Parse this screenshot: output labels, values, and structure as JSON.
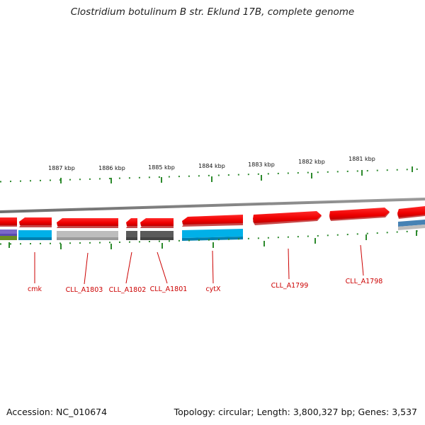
{
  "title": "Clostridium botulinum B str. Eklund 17B, complete genome",
  "footer": {
    "accession": "Accession: NC_010674",
    "summary": "Topology: circular; Length: 3,800,327 bp; Genes: 3,537"
  },
  "colors": {
    "gene_red": "#ff0000",
    "gene_shadow": "#c84a4a",
    "backbone": "#8a8a8a",
    "tick_green": "#2d8a2d",
    "label_red": "#cc0000",
    "cog_cyan": "#00b0e8",
    "cog_gray": "#bdbdbd",
    "cog_dark": "#5a5a5a",
    "cog_purple": "#7b68c8",
    "cog_olive": "#6b8e23",
    "cog_steel": "#4682b4"
  },
  "scale_labels": [
    "1887 kbp",
    "1886 kbp",
    "1885 kbp",
    "1884 kbp",
    "1883 kbp",
    "1882 kbp",
    "1881 kbp"
  ],
  "gene_labels": [
    "cmk",
    "CLL_A1803",
    "CLL_A1802",
    "CLL_A1801",
    "cytX",
    "CLL_A1799",
    "CLL_A1798"
  ]
}
